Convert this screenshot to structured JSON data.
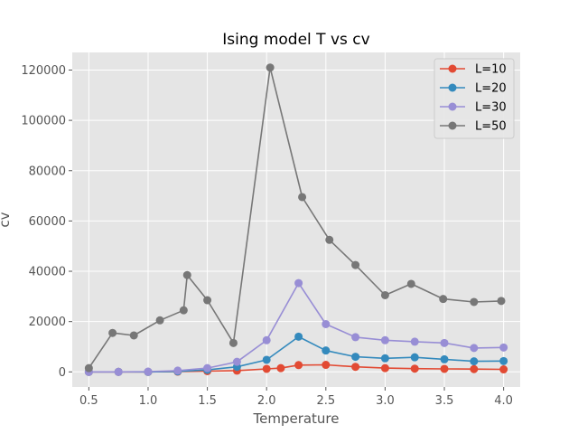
{
  "chart_data": {
    "type": "line",
    "title": "Ising model T vs cv",
    "xlabel": "Temperature",
    "ylabel": "cv",
    "xlim": [
      0.36,
      4.14
    ],
    "ylim": [
      -6000,
      127000
    ],
    "xticks": [
      "0.5",
      "1.0",
      "1.5",
      "2.0",
      "2.5",
      "3.0",
      "3.5",
      "4.0"
    ],
    "xtick_values": [
      0.5,
      1.0,
      1.5,
      2.0,
      2.5,
      3.0,
      3.5,
      4.0
    ],
    "yticks": [
      "0",
      "20000",
      "40000",
      "60000",
      "80000",
      "100000",
      "120000"
    ],
    "ytick_values": [
      0,
      20000,
      40000,
      60000,
      80000,
      100000,
      120000
    ],
    "grid": true,
    "legend_position": "top-right",
    "series": [
      {
        "name": "L=10",
        "color": "#e24a33",
        "x": [
          0.5,
          0.75,
          1.0,
          1.25,
          1.5,
          1.75,
          2.0,
          2.12,
          2.27,
          2.5,
          2.75,
          3.0,
          3.25,
          3.5,
          3.75,
          4.0
        ],
        "y": [
          0,
          0,
          0,
          100,
          300,
          500,
          1200,
          1500,
          2700,
          2800,
          2000,
          1500,
          1300,
          1200,
          1100,
          1000
        ]
      },
      {
        "name": "L=20",
        "color": "#348abd",
        "x": [
          0.5,
          0.75,
          1.0,
          1.25,
          1.5,
          1.75,
          2.0,
          2.27,
          2.5,
          2.75,
          3.0,
          3.25,
          3.5,
          3.75,
          4.0
        ],
        "y": [
          0,
          0,
          0,
          200,
          800,
          2000,
          4800,
          14000,
          8500,
          6000,
          5400,
          5800,
          5000,
          4200,
          4300
        ]
      },
      {
        "name": "L=30",
        "color": "#988ed5",
        "x": [
          0.5,
          0.75,
          1.0,
          1.25,
          1.5,
          1.75,
          2.0,
          2.27,
          2.5,
          2.75,
          3.0,
          3.25,
          3.5,
          3.75,
          4.0
        ],
        "y": [
          0,
          0,
          100,
          500,
          1500,
          4000,
          12600,
          35300,
          19000,
          13800,
          12600,
          12000,
          11500,
          9500,
          9700
        ]
      },
      {
        "name": "L=50",
        "color": "#777777",
        "x": [
          0.5,
          0.7,
          0.88,
          1.1,
          1.3,
          1.33,
          1.5,
          1.72,
          2.03,
          2.3,
          2.53,
          2.75,
          3.0,
          3.22,
          3.49,
          3.75,
          3.98
        ],
        "y": [
          1500,
          15500,
          14500,
          20500,
          24500,
          38500,
          28500,
          11500,
          121000,
          69500,
          52500,
          42500,
          30500,
          35000,
          29000,
          27800,
          28200
        ]
      }
    ]
  }
}
